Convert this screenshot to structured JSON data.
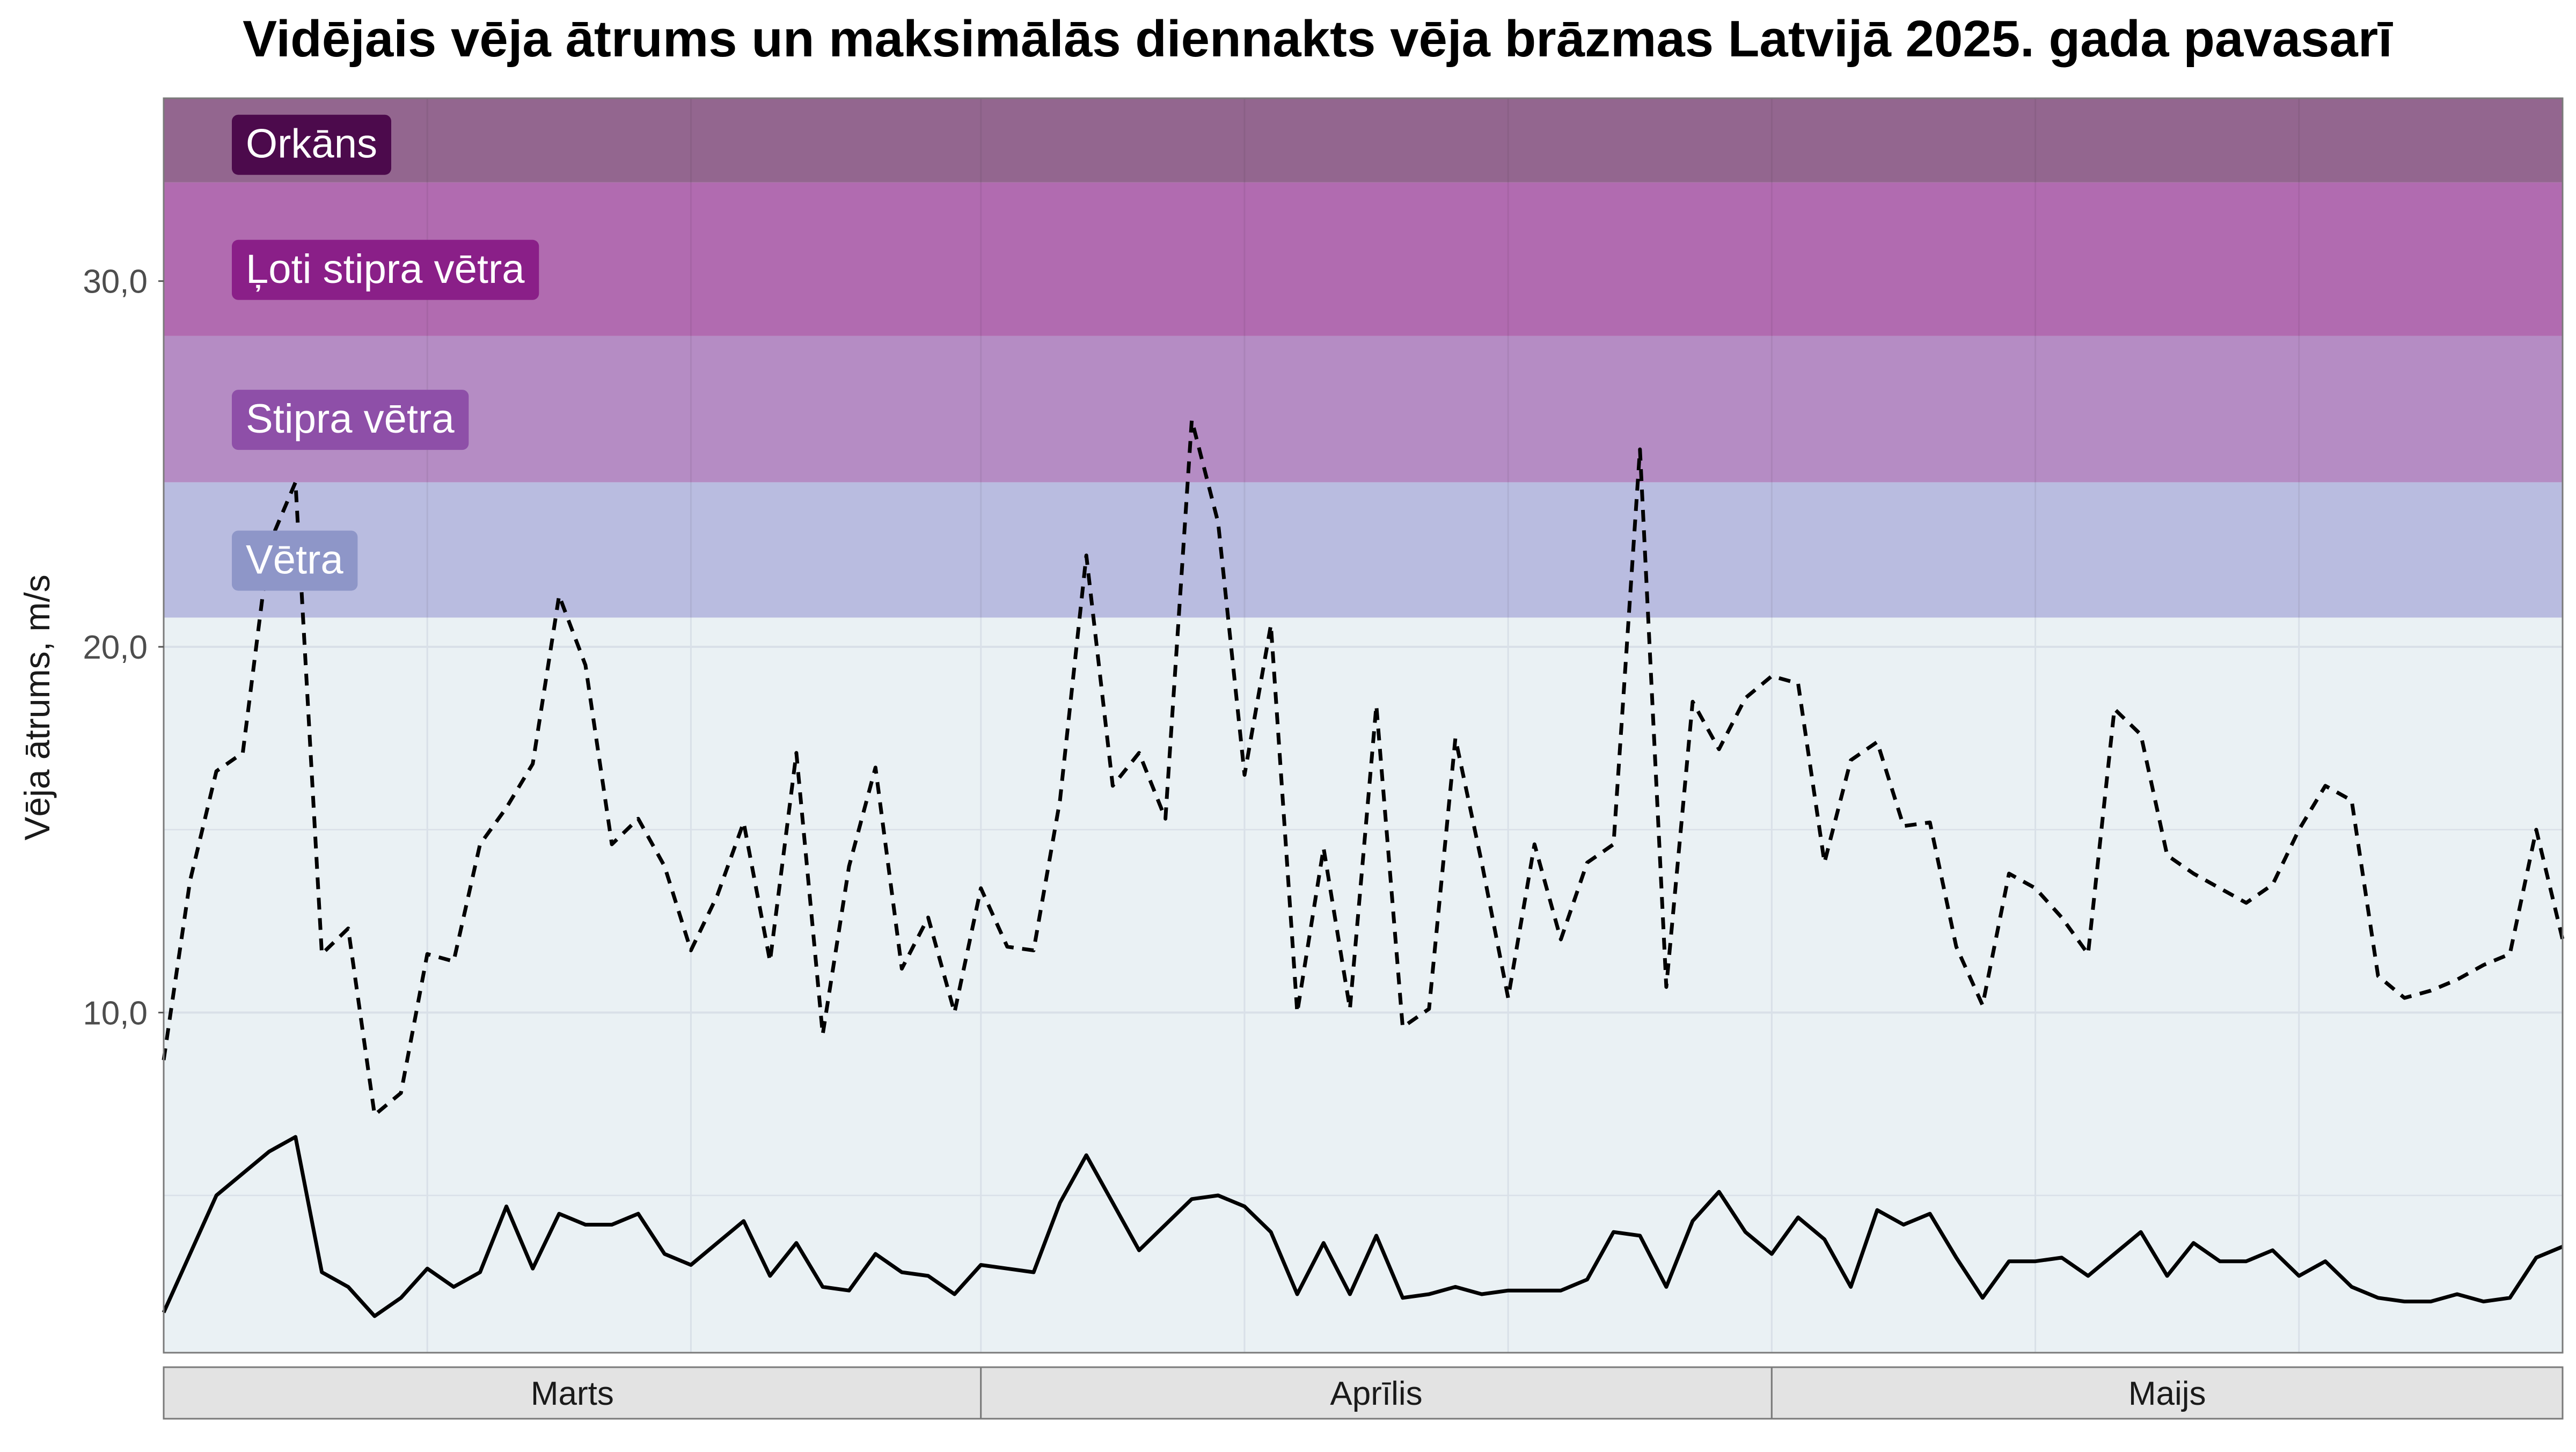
{
  "chart_data": {
    "type": "line",
    "title": "Vidējais vēja ātrums un maksimālās diennakts vēja brāzmas Latvijā 2025. gada pavasarī",
    "xlabel": "",
    "ylabel": "Vēja ātrums, m/s",
    "ylim": [
      0.7,
      35.0
    ],
    "yticks": [
      10,
      20,
      30
    ],
    "ytick_labels": [
      "10,0",
      "20,0",
      "30,0"
    ],
    "grid": true,
    "x_start": "2025-03-01",
    "x_end": "2025-05-31",
    "facets": [
      {
        "label": "Marts",
        "from": "2025-03-01",
        "to": "2025-03-31"
      },
      {
        "label": "Aprīlis",
        "from": "2025-04-01",
        "to": "2025-04-30"
      },
      {
        "label": "Maijs",
        "from": "2025-05-01",
        "to": "2025-05-31"
      }
    ],
    "bands": [
      {
        "label": "Vētra",
        "from": 20.8,
        "to": 24.5,
        "fill": "#b9bce0",
        "label_bg": "#8e96c8"
      },
      {
        "label": "Stipra vētra",
        "from": 24.5,
        "to": 28.5,
        "fill": "#b58cc4",
        "label_bg": "#8e4fa8"
      },
      {
        "label": "Ļoti stipra vētra",
        "from": 28.5,
        "to": 32.7,
        "fill": "#b16bb0",
        "label_bg": "#8a1f88"
      },
      {
        "label": "Orkāns",
        "from": 32.7,
        "to": 35.0,
        "fill": "#93668f",
        "label_bg": "#4c0a4c"
      }
    ],
    "series": [
      {
        "style": "dashed",
        "color": "#000000",
        "x": [
          "2025-03-01",
          "2025-03-02",
          "2025-03-03",
          "2025-03-04",
          "2025-03-05",
          "2025-03-06",
          "2025-03-07",
          "2025-03-08",
          "2025-03-09",
          "2025-03-10",
          "2025-03-11",
          "2025-03-12",
          "2025-03-13",
          "2025-03-14",
          "2025-03-15",
          "2025-03-16",
          "2025-03-17",
          "2025-03-18",
          "2025-03-19",
          "2025-03-20",
          "2025-03-21",
          "2025-03-22",
          "2025-03-23",
          "2025-03-24",
          "2025-03-25",
          "2025-03-26",
          "2025-03-27",
          "2025-03-28",
          "2025-03-29",
          "2025-03-30",
          "2025-03-31",
          "2025-04-01",
          "2025-04-02",
          "2025-04-03",
          "2025-04-04",
          "2025-04-05",
          "2025-04-06",
          "2025-04-07",
          "2025-04-08",
          "2025-04-09",
          "2025-04-10",
          "2025-04-11",
          "2025-04-12",
          "2025-04-13",
          "2025-04-14",
          "2025-04-15",
          "2025-04-16",
          "2025-04-17",
          "2025-04-18",
          "2025-04-19",
          "2025-04-20",
          "2025-04-21",
          "2025-04-22",
          "2025-04-23",
          "2025-04-24",
          "2025-04-25",
          "2025-04-26",
          "2025-04-27",
          "2025-04-28",
          "2025-04-29",
          "2025-04-30",
          "2025-05-01",
          "2025-05-02",
          "2025-05-03",
          "2025-05-04",
          "2025-05-05",
          "2025-05-06",
          "2025-05-07",
          "2025-05-08",
          "2025-05-09",
          "2025-05-10",
          "2025-05-11",
          "2025-05-12",
          "2025-05-13",
          "2025-05-14",
          "2025-05-15",
          "2025-05-16",
          "2025-05-17",
          "2025-05-18",
          "2025-05-19",
          "2025-05-20",
          "2025-05-21",
          "2025-05-22",
          "2025-05-23",
          "2025-05-24",
          "2025-05-25",
          "2025-05-26",
          "2025-05-27",
          "2025-05-28",
          "2025-05-29",
          "2025-05-30",
          "2025-05-31"
        ],
        "values": [
          8.7,
          13.6,
          16.6,
          17.1,
          22.8,
          24.5,
          11.6,
          12.3,
          7.2,
          7.8,
          11.6,
          11.4,
          14.6,
          15.6,
          16.8,
          21.4,
          19.5,
          14.6,
          15.3,
          14.0,
          11.7,
          13.2,
          15.2,
          11.4,
          17.1,
          9.4,
          14.0,
          16.7,
          11.2,
          12.6,
          10.0,
          13.4,
          11.8,
          11.7,
          15.8,
          22.5,
          16.2,
          17.1,
          15.3,
          26.2,
          23.4,
          16.5,
          20.6,
          10.0,
          14.5,
          10.1,
          18.4,
          9.6,
          10.1,
          17.5,
          14.1,
          10.4,
          14.6,
          12.0,
          14.1,
          14.6,
          25.4,
          10.7,
          18.5,
          17.2,
          18.6,
          19.2,
          19.0,
          14.1,
          16.9,
          17.4,
          15.1,
          15.2,
          11.8,
          10.2,
          13.8,
          13.4,
          12.6,
          11.6,
          18.3,
          17.6,
          14.3,
          13.8,
          13.4,
          13.0,
          13.5,
          15.0,
          16.2,
          15.8,
          11.0,
          10.4,
          10.6,
          10.9,
          11.3,
          11.6,
          15.0,
          12.0
        ]
      },
      {
        "style": "solid",
        "color": "#000000",
        "x": [
          "2025-03-01",
          "2025-03-02",
          "2025-03-03",
          "2025-03-04",
          "2025-03-05",
          "2025-03-06",
          "2025-03-07",
          "2025-03-08",
          "2025-03-09",
          "2025-03-10",
          "2025-03-11",
          "2025-03-12",
          "2025-03-13",
          "2025-03-14",
          "2025-03-15",
          "2025-03-16",
          "2025-03-17",
          "2025-03-18",
          "2025-03-19",
          "2025-03-20",
          "2025-03-21",
          "2025-03-22",
          "2025-03-23",
          "2025-03-24",
          "2025-03-25",
          "2025-03-26",
          "2025-03-27",
          "2025-03-28",
          "2025-03-29",
          "2025-03-30",
          "2025-03-31",
          "2025-04-01",
          "2025-04-02",
          "2025-04-03",
          "2025-04-04",
          "2025-04-05",
          "2025-04-06",
          "2025-04-07",
          "2025-04-08",
          "2025-04-09",
          "2025-04-10",
          "2025-04-11",
          "2025-04-12",
          "2025-04-13",
          "2025-04-14",
          "2025-04-15",
          "2025-04-16",
          "2025-04-17",
          "2025-04-18",
          "2025-04-19",
          "2025-04-20",
          "2025-04-21",
          "2025-04-22",
          "2025-04-23",
          "2025-04-24",
          "2025-04-25",
          "2025-04-26",
          "2025-04-27",
          "2025-04-28",
          "2025-04-29",
          "2025-04-30",
          "2025-05-01",
          "2025-05-02",
          "2025-05-03",
          "2025-05-04",
          "2025-05-05",
          "2025-05-06",
          "2025-05-07",
          "2025-05-08",
          "2025-05-09",
          "2025-05-10",
          "2025-05-11",
          "2025-05-12",
          "2025-05-13",
          "2025-05-14",
          "2025-05-15",
          "2025-05-16",
          "2025-05-17",
          "2025-05-18",
          "2025-05-19",
          "2025-05-20",
          "2025-05-21",
          "2025-05-22",
          "2025-05-23",
          "2025-05-24",
          "2025-05-25",
          "2025-05-26",
          "2025-05-27",
          "2025-05-28",
          "2025-05-29",
          "2025-05-30",
          "2025-05-31"
        ],
        "values": [
          1.8,
          3.4,
          5.0,
          5.6,
          6.2,
          6.6,
          2.9,
          2.5,
          1.7,
          2.2,
          3.0,
          2.5,
          2.9,
          4.7,
          3.0,
          4.5,
          4.2,
          4.2,
          4.5,
          3.4,
          3.1,
          3.7,
          4.3,
          2.8,
          3.7,
          2.5,
          2.4,
          3.4,
          2.9,
          2.8,
          2.3,
          3.1,
          3.0,
          2.9,
          4.8,
          6.1,
          4.8,
          3.5,
          4.2,
          4.9,
          5.0,
          4.7,
          4.0,
          2.3,
          3.7,
          2.3,
          3.9,
          2.2,
          2.3,
          2.5,
          2.3,
          2.4,
          2.4,
          2.4,
          2.7,
          4.0,
          3.9,
          2.5,
          4.3,
          5.1,
          4.0,
          3.4,
          4.4,
          3.8,
          2.5,
          4.6,
          4.2,
          4.5,
          3.3,
          2.2,
          3.2,
          3.2,
          3.3,
          2.8,
          3.4,
          4.0,
          2.8,
          3.7,
          3.2,
          3.2,
          3.5,
          2.8,
          3.2,
          2.5,
          2.2,
          2.1,
          2.1,
          2.3,
          2.1,
          2.2,
          3.3,
          3.6
        ]
      }
    ]
  }
}
